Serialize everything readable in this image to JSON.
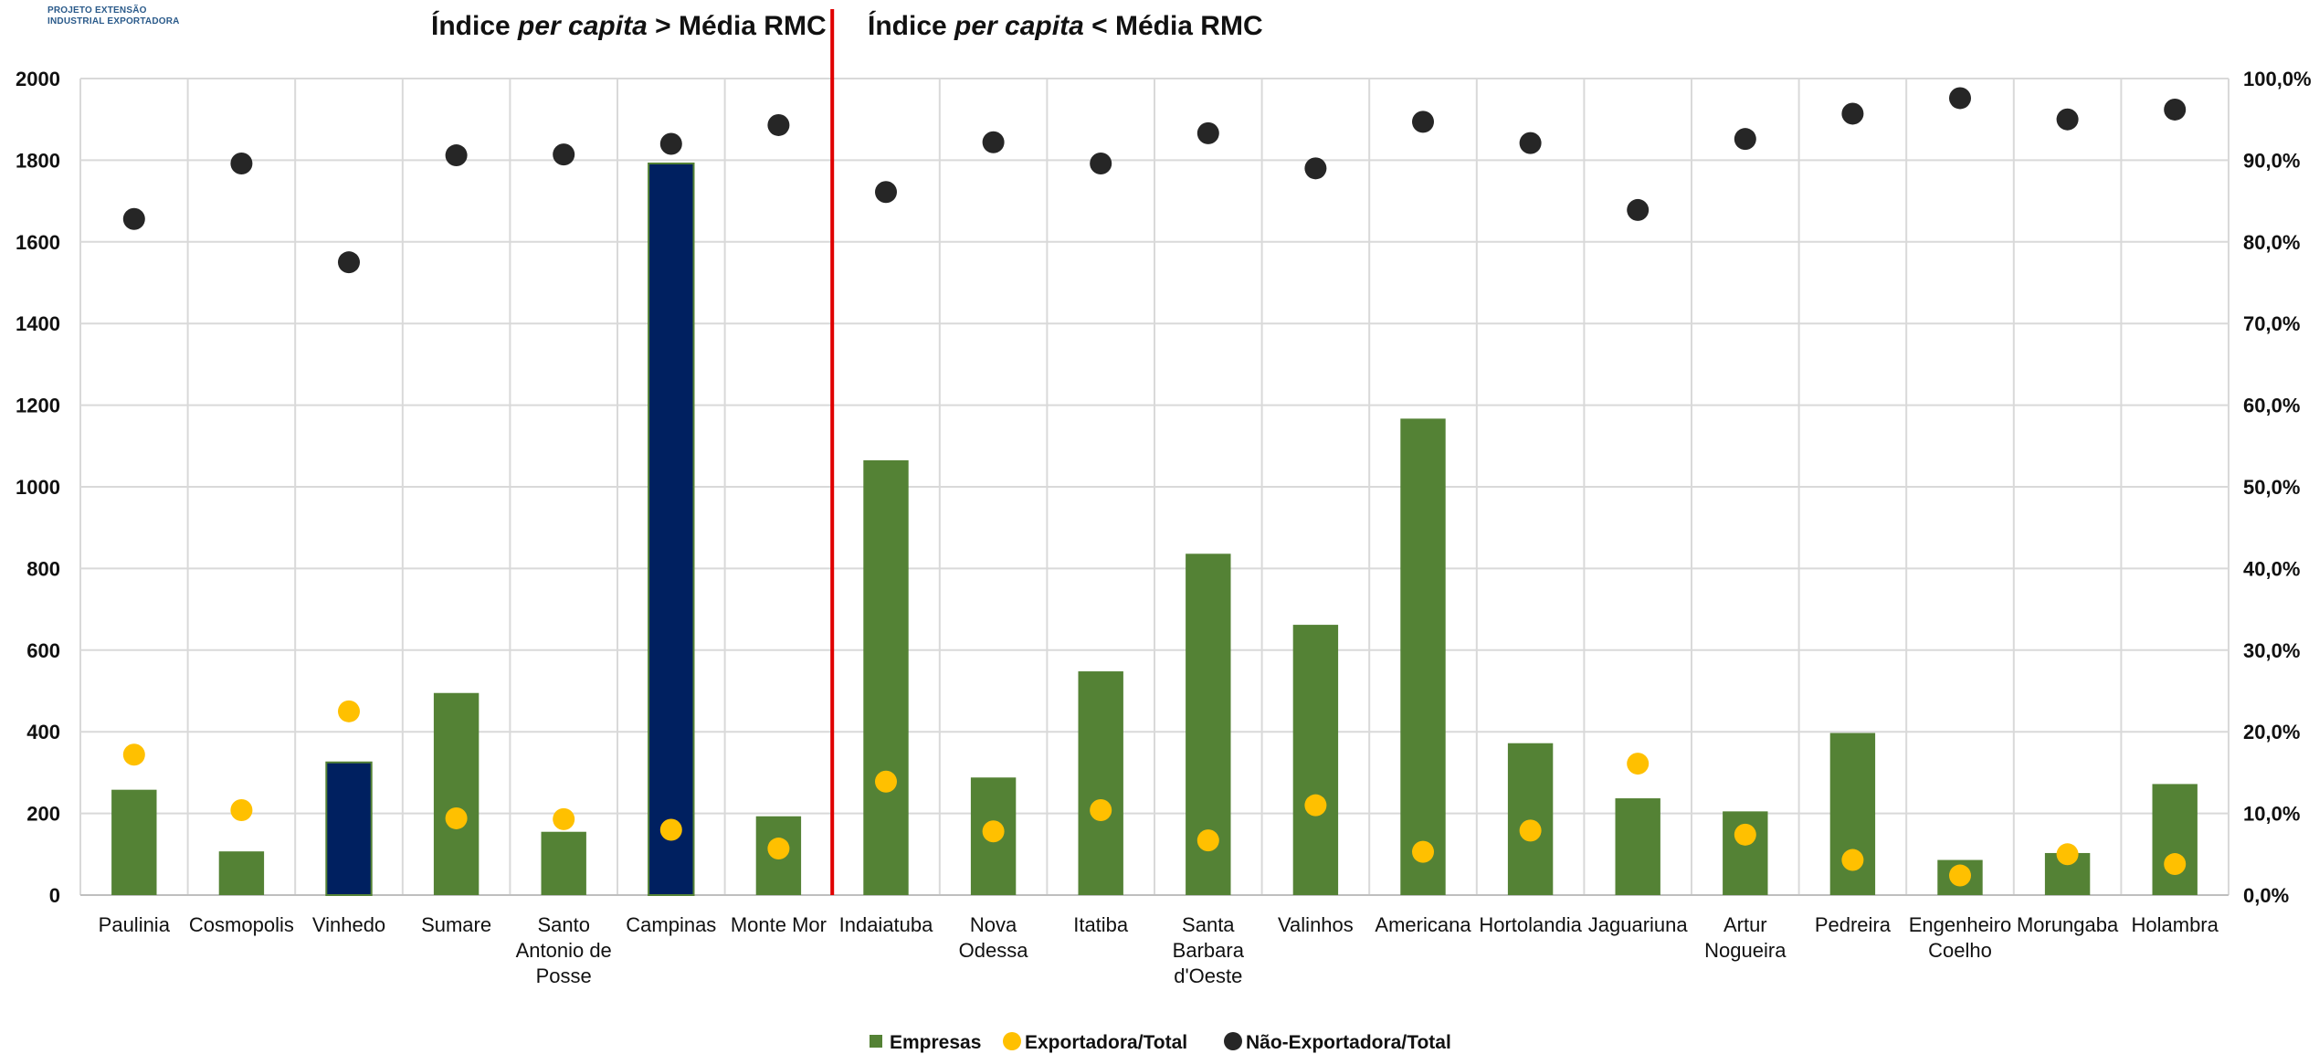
{
  "logo": {
    "line1": "PROJETO EXTENSÃO",
    "line2": "INDUSTRIAL EXPORTADORA"
  },
  "annotations": {
    "left": {
      "prefix": "Índice ",
      "italic": "per capita",
      "suffix": " > Média RMC"
    },
    "right": {
      "prefix": "Índice ",
      "italic": "per capita",
      "suffix": " < Média RMC"
    }
  },
  "colors": {
    "empresas": "#548235",
    "highlight": "#002060",
    "exportadora": "#FFC000",
    "nao_exportadora": "#262626",
    "divider": "#E00000",
    "grid": "#D9D9D9"
  },
  "chart_data": {
    "type": "bar",
    "categories": [
      "Paulinia",
      "Cosmopolis",
      "Vinhedo",
      "Sumare",
      "Santo Antonio de Posse",
      "Campinas",
      "Monte Mor",
      "Indaiatuba",
      "Nova Odessa",
      "Itatiba",
      "Santa Barbara d'Oeste",
      "Valinhos",
      "Americana",
      "Hortolandia",
      "Jaguariuna",
      "Artur Nogueira",
      "Pedreira",
      "Engenheiro Coelho",
      "Morungaba",
      "Holambra"
    ],
    "category_lines": [
      [
        "Paulinia"
      ],
      [
        "Cosmopolis"
      ],
      [
        "Vinhedo"
      ],
      [
        "Sumare"
      ],
      [
        "Santo",
        "Antonio de",
        "Posse"
      ],
      [
        "Campinas"
      ],
      [
        "Monte Mor"
      ],
      [
        "Indaiatuba"
      ],
      [
        "Nova",
        "Odessa"
      ],
      [
        "Itatiba"
      ],
      [
        "Santa",
        "Barbara",
        "d'Oeste"
      ],
      [
        "Valinhos"
      ],
      [
        "Americana"
      ],
      [
        "Hortolandia"
      ],
      [
        "Jaguariuna"
      ],
      [
        "Artur",
        "Nogueira"
      ],
      [
        "Pedreira"
      ],
      [
        "Engenheiro",
        "Coelho"
      ],
      [
        "Morungaba"
      ],
      [
        "Holambra"
      ]
    ],
    "highlighted": [
      "Vinhedo",
      "Campinas"
    ],
    "divider_after_category": "Monte Mor",
    "series": [
      {
        "name": "Empresas",
        "kind": "bar",
        "axis": "left",
        "values": [
          258,
          107,
          325,
          495,
          155,
          1792,
          193,
          1065,
          288,
          548,
          836,
          662,
          1167,
          372,
          237,
          205,
          397,
          86,
          103,
          272
        ]
      },
      {
        "name": "Exportadora/Total",
        "kind": "scatter",
        "axis": "right",
        "values": [
          17.2,
          10.4,
          22.5,
          9.4,
          9.3,
          8.0,
          5.7,
          13.9,
          7.8,
          10.4,
          6.7,
          11.0,
          5.3,
          7.9,
          16.1,
          7.4,
          4.3,
          2.4,
          5.0,
          3.8
        ]
      },
      {
        "name": "Não-Exportadora/Total",
        "kind": "scatter",
        "axis": "right",
        "values": [
          82.8,
          89.6,
          77.5,
          90.6,
          90.7,
          92.0,
          94.3,
          86.1,
          92.2,
          89.6,
          93.3,
          89.0,
          94.7,
          92.1,
          83.9,
          92.6,
          95.7,
          97.6,
          95.0,
          96.2
        ]
      }
    ],
    "y_left": {
      "min": 0,
      "max": 2000,
      "step": 200,
      "ticks": [
        "0",
        "200",
        "400",
        "600",
        "800",
        "1000",
        "1200",
        "1400",
        "1600",
        "1800",
        "2000"
      ]
    },
    "y_right": {
      "min": 0,
      "max": 100,
      "step": 10,
      "ticks": [
        "0,0%",
        "10,0%",
        "20,0%",
        "30,0%",
        "40,0%",
        "50,0%",
        "60,0%",
        "70,0%",
        "80,0%",
        "90,0%",
        "100,0%"
      ]
    },
    "grid": true,
    "legend_position": "bottom-center",
    "legend": [
      "Empresas",
      "Exportadora/Total",
      "Não-Exportadora/Total"
    ]
  }
}
